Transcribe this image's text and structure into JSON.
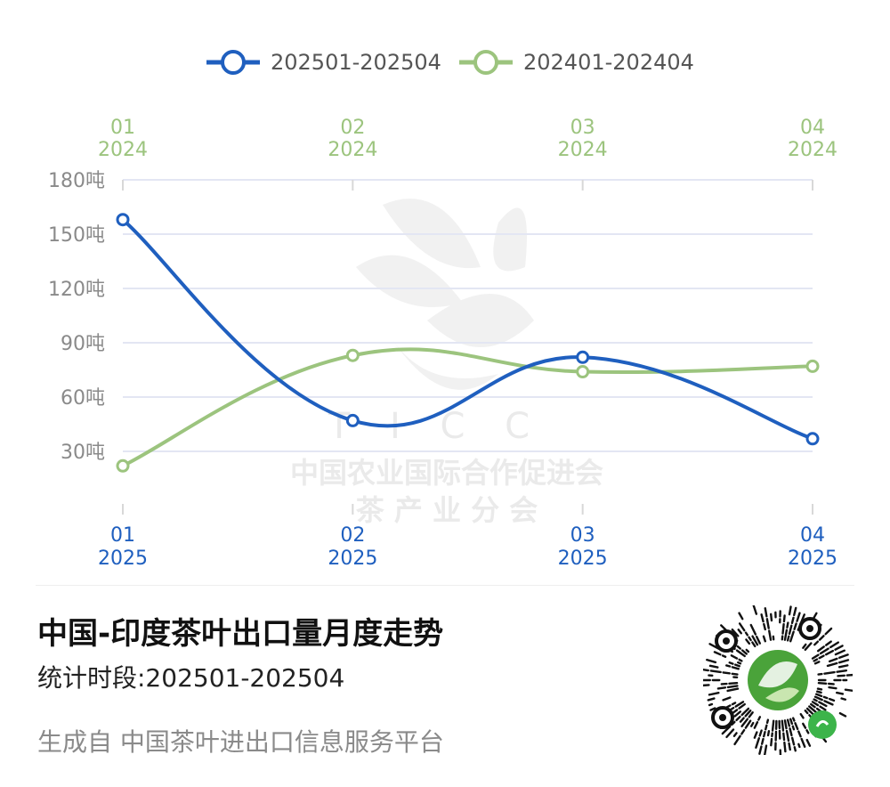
{
  "chart_data": {
    "type": "line",
    "categories": [
      "01",
      "02",
      "03",
      "04"
    ],
    "x_top_labels": [
      [
        "01",
        "2024"
      ],
      [
        "02",
        "2024"
      ],
      [
        "03",
        "2024"
      ],
      [
        "04",
        "2024"
      ]
    ],
    "x_bottom_labels": [
      [
        "01",
        "2025"
      ],
      [
        "02",
        "2025"
      ],
      [
        "03",
        "2025"
      ],
      [
        "04",
        "2025"
      ]
    ],
    "y_ticks": [
      "180吨",
      "150吨",
      "120吨",
      "90吨",
      "60吨",
      "30吨"
    ],
    "ylim": [
      0,
      180
    ],
    "series": [
      {
        "name": "202501-202504",
        "values": [
          158,
          47,
          82,
          37
        ],
        "color": "#1f5fbf"
      },
      {
        "name": "202401-202404",
        "values": [
          22,
          83,
          74,
          77
        ],
        "color": "#9cc47e"
      }
    ],
    "grid": true,
    "legend_position": "top"
  },
  "watermark": {
    "letters": "T I C C",
    "line1": "中国农业国际合作促进会",
    "line2": "茶   产   业   分   会"
  },
  "footer": {
    "title": "中国-印度茶叶出口量月度走势",
    "period": "统计时段:202501-202504",
    "source": "生成自 中国茶叶进出口信息服务平台"
  },
  "qr": {
    "icon": "mini-program-qr-code"
  }
}
